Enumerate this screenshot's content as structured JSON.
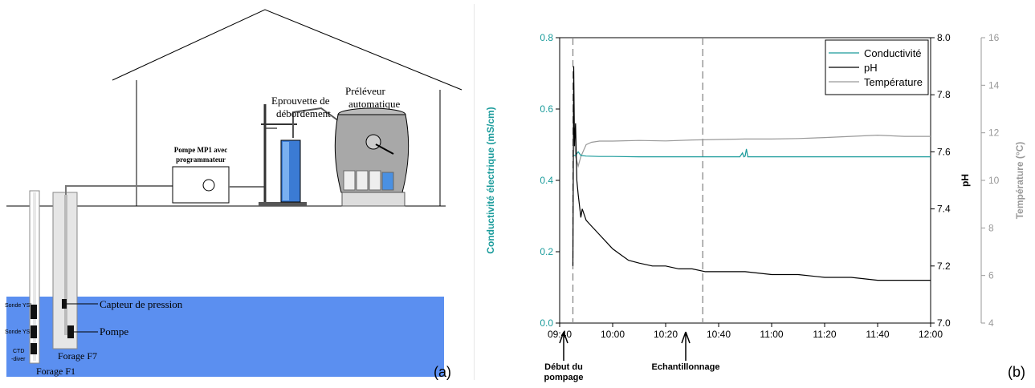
{
  "panel_a": {
    "panel_label": "(a)",
    "pump_label": [
      "Pompe MP1 avec",
      "programmateur"
    ],
    "overflow_label": [
      "Eprouvette de",
      "débordement"
    ],
    "sampler_label": [
      "Préléveur",
      "automatique"
    ],
    "pressure_sensor_label": "Capteur de pression",
    "pump_in_well_label": "Pompe",
    "borehole_f7_label": "Forage F7",
    "borehole_f1_label": "Forage F1",
    "probe_1_label": "Sonde YSI",
    "probe_2_label": "Sonde YSI",
    "ctd_label": [
      "CTD",
      "-diver"
    ],
    "water_color": "#5b8ff0"
  },
  "panel_b": {
    "panel_label": "(b)",
    "annotation_start": [
      "Début du",
      "pompage"
    ],
    "annotation_sampling": "Echantillonnage"
  },
  "chart_data": {
    "type": "line",
    "x_tick_labels": [
      "09:40",
      "10:00",
      "10:20",
      "10:40",
      "11:00",
      "11:20",
      "11:40",
      "12:00"
    ],
    "xlim": [
      "09:40",
      "12:00"
    ],
    "left_axis": {
      "label": "Conductivité électrique (mS/cm)",
      "ticks": [
        "0.0",
        "0.2",
        "0.4",
        "0.6",
        "0.8"
      ],
      "lim": [
        0,
        0.8
      ],
      "color": "#1a9b9b"
    },
    "right_axis_1": {
      "label": "pH",
      "ticks": [
        "7.0",
        "7.2",
        "7.4",
        "7.6",
        "7.8",
        "8.0"
      ],
      "lim": [
        7.0,
        8.0
      ],
      "color": "#000000"
    },
    "right_axis_2": {
      "label": "Température (°C)",
      "ticks": [
        "4",
        "6",
        "8",
        "10",
        "12",
        "14",
        "16"
      ],
      "lim": [
        4,
        16
      ],
      "color": "#999999"
    },
    "legend_position": "top-right",
    "vertical_markers": [
      "09:45",
      "10:34"
    ],
    "series": [
      {
        "name": "Conductivité",
        "axis": "left",
        "color": "#1a9b9b",
        "points": [
          [
            "09:45",
            0.47
          ],
          [
            "09:46",
            0.47
          ],
          [
            "09:47",
            0.48
          ],
          [
            "09:48",
            0.47
          ],
          [
            "09:50",
            0.468
          ],
          [
            "09:55",
            0.467
          ],
          [
            "10:00",
            0.467
          ],
          [
            "10:10",
            0.466
          ],
          [
            "10:20",
            0.466
          ],
          [
            "10:30",
            0.466
          ],
          [
            "10:40",
            0.466
          ],
          [
            "10:48",
            0.466
          ],
          [
            "10:49",
            0.477
          ],
          [
            "10:49.5",
            0.466
          ],
          [
            "10:50",
            0.468
          ],
          [
            "10:50.5",
            0.488
          ],
          [
            "10:51",
            0.466
          ],
          [
            "11:00",
            0.466
          ],
          [
            "11:20",
            0.466
          ],
          [
            "11:40",
            0.466
          ],
          [
            "12:00",
            0.466
          ]
        ]
      },
      {
        "name": "pH",
        "axis": "right_1",
        "color": "#000000",
        "points": [
          [
            "09:45",
            7.2
          ],
          [
            "09:45.3",
            7.9
          ],
          [
            "09:45.6",
            7.62
          ],
          [
            "09:46",
            7.7
          ],
          [
            "09:46.5",
            7.5
          ],
          [
            "09:47",
            7.45
          ],
          [
            "09:48",
            7.37
          ],
          [
            "09:48.5",
            7.4
          ],
          [
            "09:50",
            7.36
          ],
          [
            "09:52",
            7.34
          ],
          [
            "09:55",
            7.31
          ],
          [
            "09:58",
            7.28
          ],
          [
            "10:00",
            7.26
          ],
          [
            "10:03",
            7.24
          ],
          [
            "10:06",
            7.22
          ],
          [
            "10:10",
            7.21
          ],
          [
            "10:15",
            7.2
          ],
          [
            "10:20",
            7.2
          ],
          [
            "10:25",
            7.19
          ],
          [
            "10:30",
            7.19
          ],
          [
            "10:35",
            7.18
          ],
          [
            "10:40",
            7.18
          ],
          [
            "10:50",
            7.18
          ],
          [
            "11:00",
            7.17
          ],
          [
            "11:10",
            7.17
          ],
          [
            "11:20",
            7.16
          ],
          [
            "11:30",
            7.16
          ],
          [
            "11:40",
            7.15
          ],
          [
            "11:50",
            7.15
          ],
          [
            "12:00",
            7.15
          ]
        ]
      },
      {
        "name": "Température",
        "axis": "right_2",
        "color": "#999999",
        "points": [
          [
            "09:45",
            13.2
          ],
          [
            "09:46",
            11.0
          ],
          [
            "09:47",
            10.6
          ],
          [
            "09:48",
            11.0
          ],
          [
            "09:50",
            11.5
          ],
          [
            "09:52",
            11.6
          ],
          [
            "09:55",
            11.65
          ],
          [
            "10:00",
            11.65
          ],
          [
            "10:10",
            11.68
          ],
          [
            "10:20",
            11.66
          ],
          [
            "10:30",
            11.7
          ],
          [
            "10:40",
            11.72
          ],
          [
            "10:50",
            11.74
          ],
          [
            "11:00",
            11.74
          ],
          [
            "11:10",
            11.76
          ],
          [
            "11:20",
            11.8
          ],
          [
            "11:30",
            11.85
          ],
          [
            "11:40",
            11.9
          ],
          [
            "11:50",
            11.85
          ],
          [
            "12:00",
            11.85
          ]
        ]
      }
    ]
  }
}
